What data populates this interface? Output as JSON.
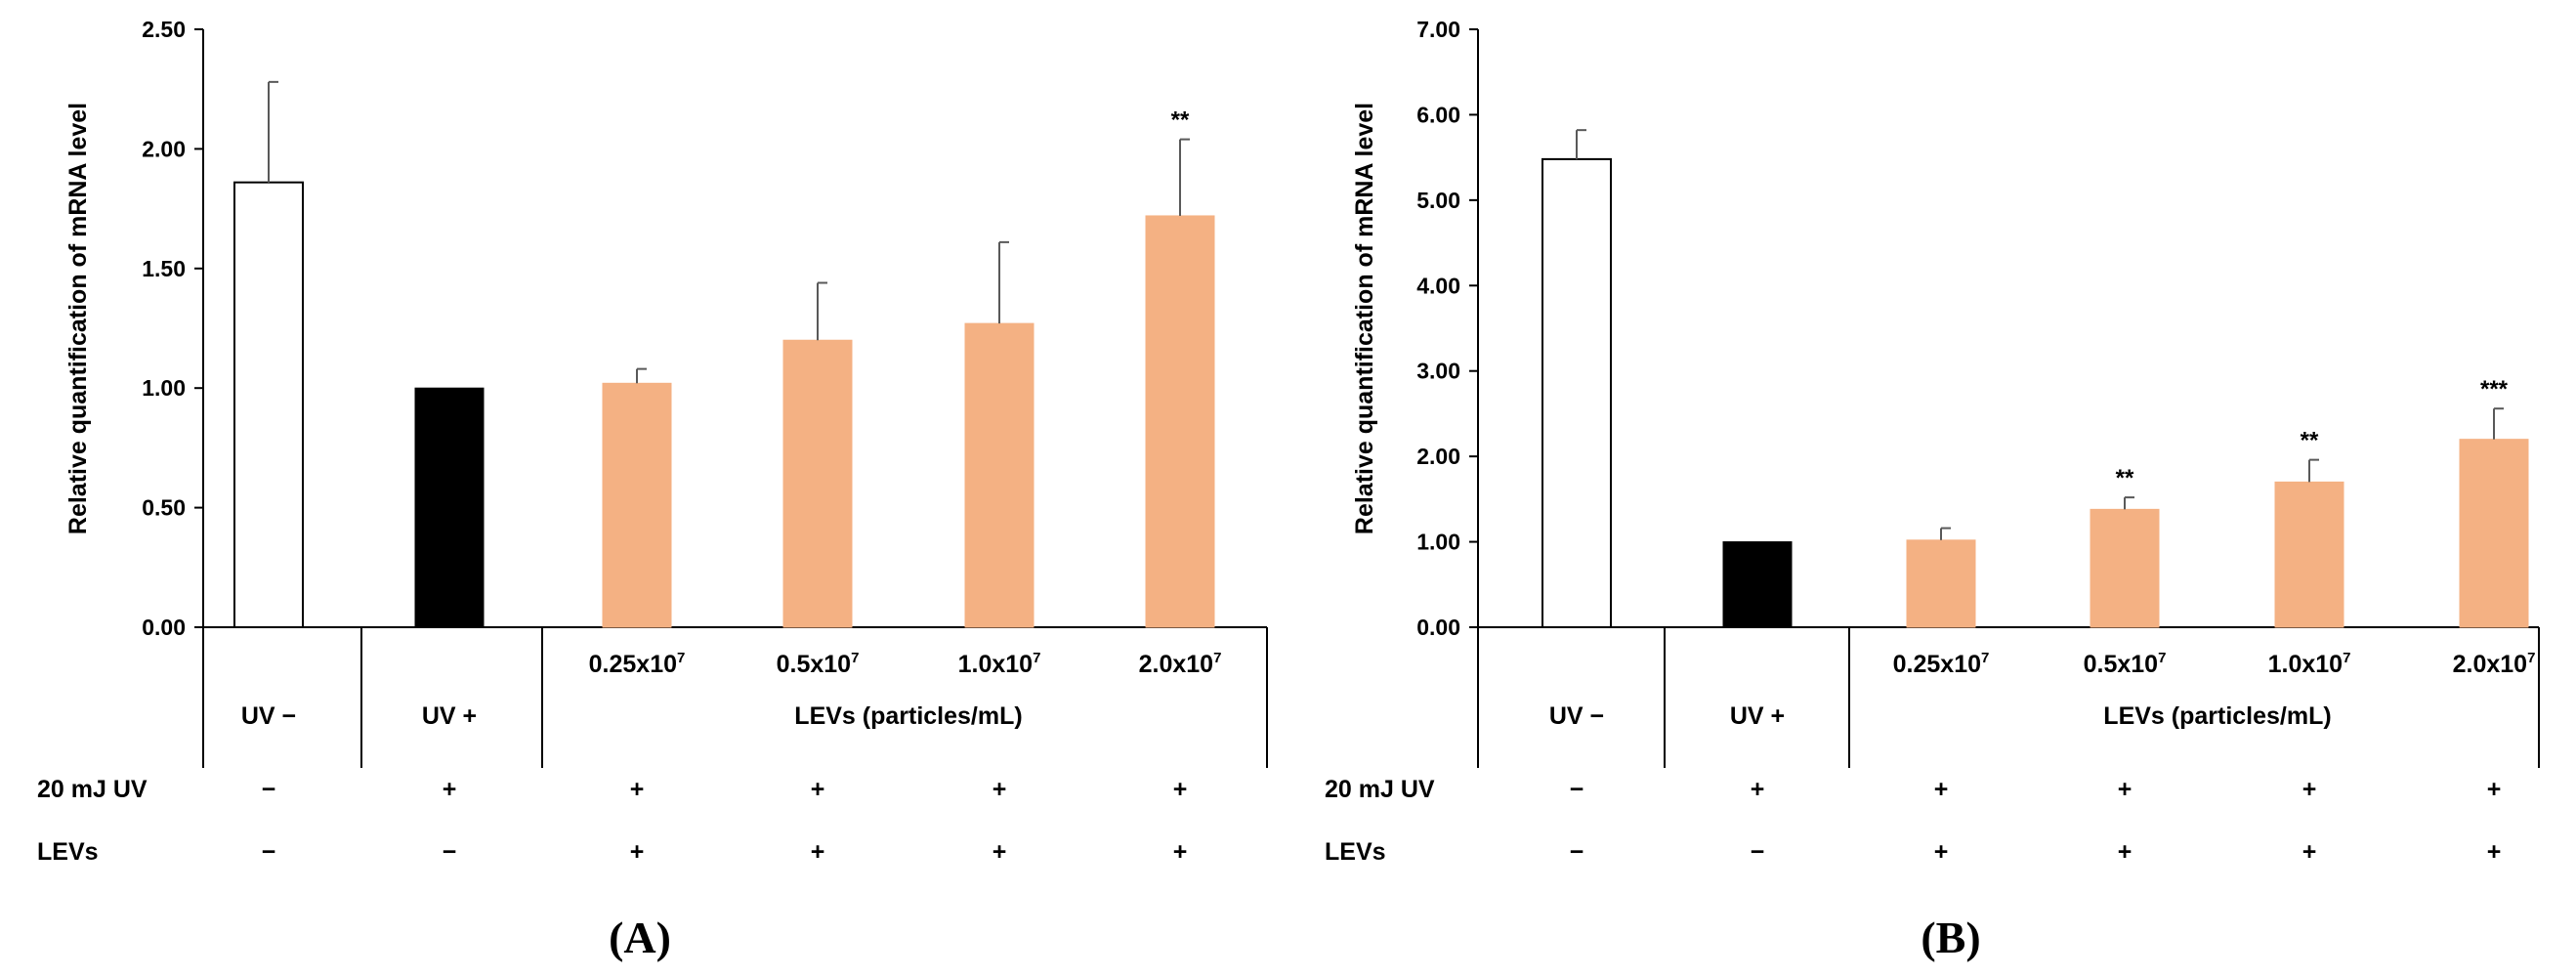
{
  "chart_data": [
    {
      "type": "bar",
      "panel_label": "(A)",
      "ylabel": "Relative quantification of mRNA level",
      "ylim": [
        0,
        2.5
      ],
      "yticks": [
        "0.00",
        "0.50",
        "1.00",
        "1.50",
        "2.00",
        "2.50"
      ],
      "categories": [
        "UV −",
        "UV +",
        "0.25x10^7",
        "0.5x10^7",
        "1.0x10^7",
        "2.0x10^7"
      ],
      "group_label": "LEVs (particles/mL)",
      "values": [
        1.86,
        1.0,
        1.02,
        1.2,
        1.27,
        1.72
      ],
      "errors": [
        0.42,
        0.0,
        0.06,
        0.24,
        0.34,
        0.32
      ],
      "significance": [
        "",
        "",
        "",
        "",
        "",
        "**"
      ],
      "colors": [
        "#ffffff",
        "#000000",
        "#f4b183",
        "#f4b183",
        "#f4b183",
        "#f4b183"
      ],
      "treatment_rows": [
        {
          "label": "20 mJ UV",
          "values": [
            "−",
            "+",
            "+",
            "+",
            "+",
            "+"
          ]
        },
        {
          "label": "LEVs",
          "values": [
            "−",
            "−",
            "+",
            "+",
            "+",
            "+"
          ]
        }
      ]
    },
    {
      "type": "bar",
      "panel_label": "(B)",
      "ylabel": "Relative quantification of mRNA level",
      "ylim": [
        0,
        7
      ],
      "yticks": [
        "0.00",
        "1.00",
        "2.00",
        "3.00",
        "4.00",
        "5.00",
        "6.00",
        "7.00"
      ],
      "categories": [
        "UV −",
        "UV +",
        "0.25x10^7",
        "0.5x10^7",
        "1.0x10^7",
        "2.0x10^7"
      ],
      "group_label": "LEVs (particles/mL)",
      "values": [
        5.48,
        1.0,
        1.02,
        1.38,
        1.7,
        2.2
      ],
      "errors": [
        0.34,
        0.0,
        0.14,
        0.14,
        0.26,
        0.36
      ],
      "significance": [
        "",
        "",
        "",
        "**",
        "**",
        "***"
      ],
      "colors": [
        "#ffffff",
        "#000000",
        "#f4b183",
        "#f4b183",
        "#f4b183",
        "#f4b183"
      ],
      "treatment_rows": [
        {
          "label": "20 mJ UV",
          "values": [
            "−",
            "+",
            "+",
            "+",
            "+",
            "+"
          ]
        },
        {
          "label": "LEVs",
          "values": [
            "−",
            "−",
            "+",
            "+",
            "+",
            "+"
          ]
        }
      ]
    }
  ]
}
